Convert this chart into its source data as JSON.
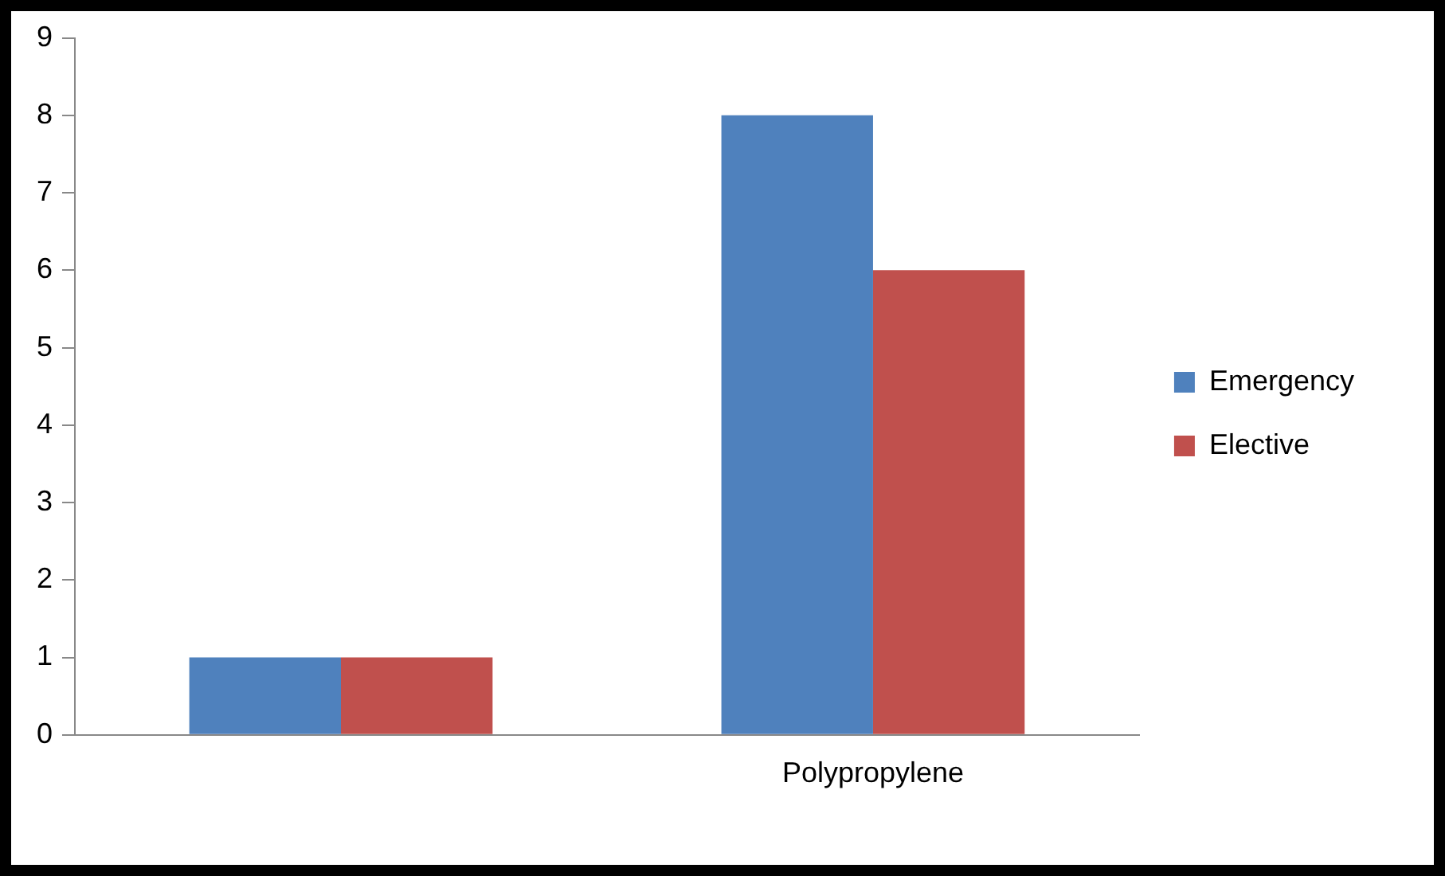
{
  "chart_data": {
    "type": "bar",
    "categories": [
      null,
      "Polypropylene"
    ],
    "series": [
      {
        "name": "Emergency",
        "color": "#4f81bd",
        "values": [
          1,
          8
        ]
      },
      {
        "name": "Elective",
        "color": "#c0504d",
        "values": [
          1,
          6
        ]
      }
    ],
    "ylim": [
      0,
      9
    ],
    "yticks": [
      0,
      1,
      2,
      3,
      4,
      5,
      6,
      7,
      8,
      9
    ],
    "grid": false,
    "legend": "right"
  }
}
